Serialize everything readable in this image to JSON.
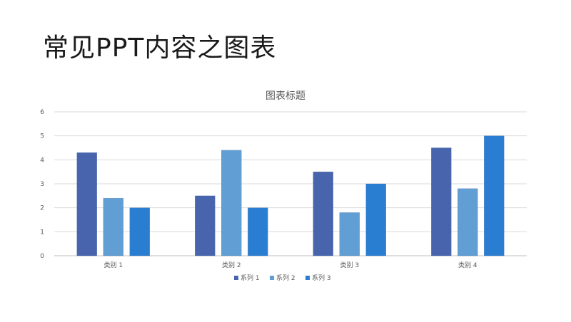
{
  "slide": {
    "title": "常见PPT内容之图表"
  },
  "chart_data": {
    "type": "bar",
    "title": "图表标题",
    "categories": [
      "类别 1",
      "类别 2",
      "类别 3",
      "类别 4"
    ],
    "series": [
      {
        "name": "系列 1",
        "values": [
          4.3,
          2.5,
          3.5,
          4.5
        ],
        "color": "#4864ad"
      },
      {
        "name": "系列 2",
        "values": [
          2.4,
          4.4,
          1.8,
          2.8
        ],
        "color": "#619ed3"
      },
      {
        "name": "系列 3",
        "values": [
          2,
          2,
          3,
          5
        ],
        "color": "#2a7ed1"
      }
    ],
    "ylim": [
      0,
      6
    ],
    "yticks": [
      "0",
      "1",
      "2",
      "3",
      "4",
      "5",
      "6"
    ],
    "grid": true,
    "legend": "bottom"
  }
}
